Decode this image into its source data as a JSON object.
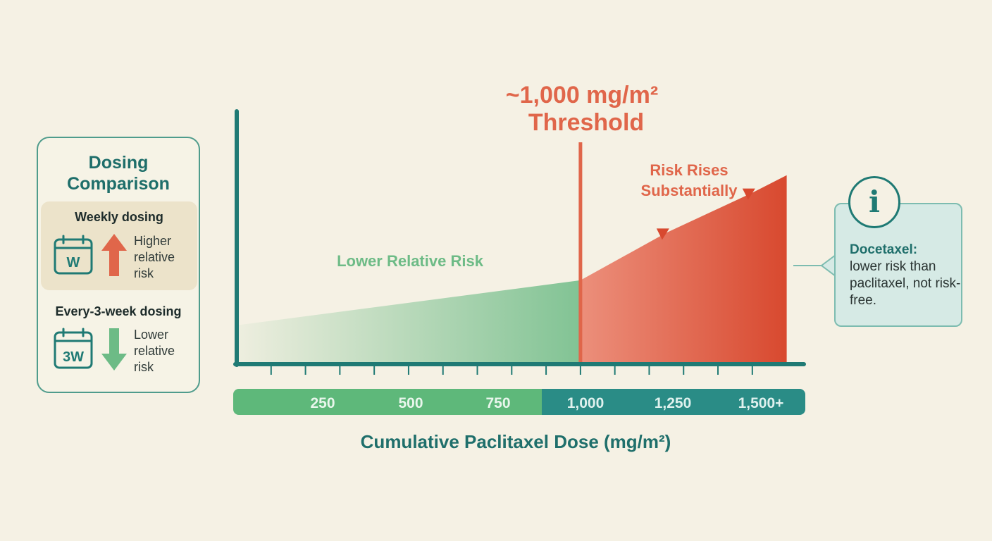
{
  "chart_data": {
    "type": "area",
    "title": "~1,000 mg/m²\nThreshold",
    "xlabel": "Cumulative Paclitaxel Dose (mg/m²)",
    "ylabel": "",
    "x_tick_labels": [
      "250",
      "500",
      "750",
      "1,000",
      "1,250",
      "1,500+"
    ],
    "x_tick_values": [
      250,
      500,
      750,
      1000,
      1250,
      1500
    ],
    "xlim": [
      0,
      1650
    ],
    "ylim": [
      0,
      1
    ],
    "threshold": 1000,
    "series": [
      {
        "name": "Lower Relative Risk",
        "x": [
          0,
          1000
        ],
        "y": [
          0.15,
          0.33
        ]
      },
      {
        "name": "Risk Rises Substantially",
        "x": [
          1000,
          1250,
          1500,
          1600
        ],
        "y": [
          0.33,
          0.52,
          0.68,
          0.75
        ]
      }
    ],
    "colors": {
      "low": "#6dbb86",
      "high": "#e0553a",
      "axis": "#1f7a74",
      "threshold": "#e0664a"
    }
  },
  "dosing_card": {
    "title": "Dosing Comparison",
    "weekly": {
      "label": "Weekly dosing",
      "icon_text": "W",
      "risk": "Higher relative risk"
    },
    "three_week": {
      "label": "Every-3-week dosing",
      "icon_text": "3W",
      "risk": "Lower relative risk"
    }
  },
  "callout": {
    "icon": "info-icon",
    "heading": "Docetaxel:",
    "body": "lower risk than paclitaxel, not risk-free."
  }
}
